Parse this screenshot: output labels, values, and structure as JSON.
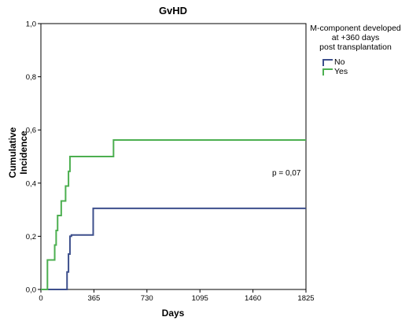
{
  "chart_data": {
    "type": "line",
    "title": "GvHD",
    "xlabel": "Days",
    "ylabel": "Cumulative Incidence",
    "xlim": [
      0,
      1825
    ],
    "ylim": [
      0,
      1.0
    ],
    "x_ticks": [
      0,
      365,
      730,
      1095,
      1460,
      1825
    ],
    "y_ticks": [
      0.0,
      0.2,
      0.4,
      0.6,
      0.8,
      1.0
    ],
    "y_tick_labels": [
      "0,0",
      "0,2",
      "0,4",
      "0,6",
      "0,8",
      "1,0"
    ],
    "legend_title": [
      "M-component developed",
      "at +360 days",
      "post transplantation"
    ],
    "legend_position": "right",
    "annotation": "p = 0,07",
    "series": [
      {
        "name": "No",
        "color": "#3d4f8c",
        "step_x": [
          0,
          180,
          190,
          200,
          210,
          360,
          1825
        ],
        "step_y": [
          0,
          0.066,
          0.133,
          0.2,
          0.205,
          0.305,
          0.305
        ]
      },
      {
        "name": "Yes",
        "color": "#4caf50",
        "step_x": [
          0,
          45,
          95,
          105,
          115,
          140,
          170,
          190,
          200,
          500,
          1825
        ],
        "step_y": [
          0,
          0.111,
          0.167,
          0.222,
          0.278,
          0.333,
          0.389,
          0.444,
          0.5,
          0.562,
          0.562
        ]
      }
    ]
  }
}
